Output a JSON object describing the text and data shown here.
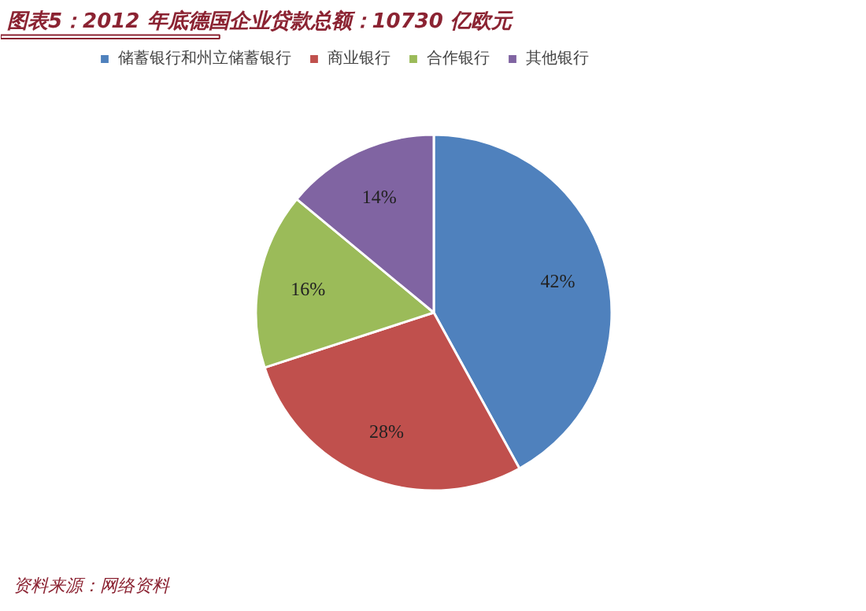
{
  "chart_data": {
    "type": "pie",
    "title": "图表5：2012 年底德国企业贷款总额：10730 亿欧元",
    "categories": [
      "储蓄银行和州立储蓄银行",
      "商业银行",
      "合作银行",
      "其他银行"
    ],
    "values": [
      42,
      28,
      16,
      14
    ],
    "colors": [
      "#4f81bd",
      "#c0504d",
      "#9bbb59",
      "#8064a2"
    ],
    "value_labels": [
      "42%",
      "28%",
      "16%",
      "14%"
    ],
    "legend": "top",
    "annotations": [
      "资料来源：网络资料"
    ]
  }
}
